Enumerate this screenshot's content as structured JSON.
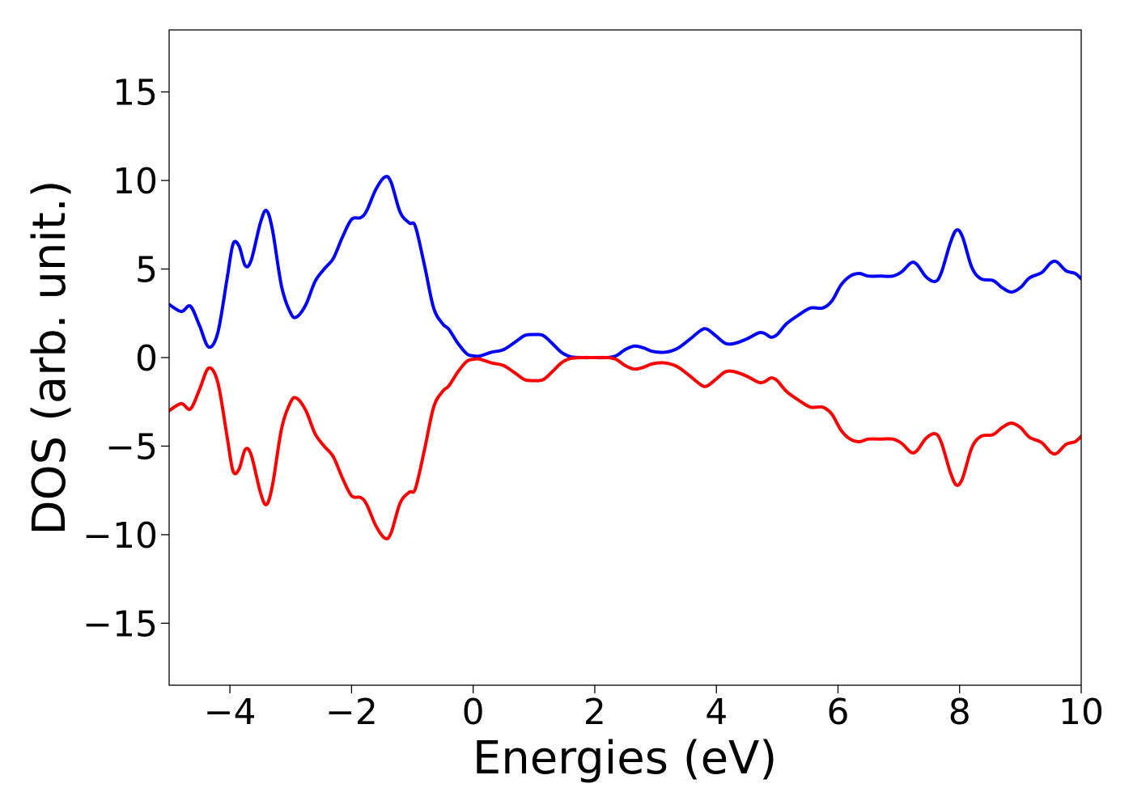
{
  "chart_data": {
    "type": "line",
    "title": "",
    "xlabel": "Energies (eV)",
    "ylabel": "DOS (arb. unit.)",
    "xlim": [
      -5,
      10
    ],
    "ylim": [
      -18.5,
      18.5
    ],
    "xticks": [
      -4,
      -2,
      0,
      2,
      4,
      6,
      8,
      10
    ],
    "xtick_labels": [
      "−4",
      "−2",
      "0",
      "2",
      "4",
      "6",
      "8",
      "10"
    ],
    "yticks": [
      -15,
      -10,
      -5,
      0,
      5,
      10,
      15
    ],
    "ytick_labels": [
      "−15",
      "−10",
      "−5",
      "0",
      "5",
      "10",
      "15"
    ],
    "grid": false,
    "legend": "none",
    "series": [
      {
        "color": "#0000ff",
        "points": [
          [
            -5.0,
            3.0
          ],
          [
            -4.8,
            2.6
          ],
          [
            -4.65,
            2.9
          ],
          [
            -4.5,
            1.8
          ],
          [
            -4.35,
            0.6
          ],
          [
            -4.2,
            1.4
          ],
          [
            -4.05,
            4.4
          ],
          [
            -3.95,
            6.4
          ],
          [
            -3.85,
            6.3
          ],
          [
            -3.75,
            5.2
          ],
          [
            -3.65,
            5.5
          ],
          [
            -3.5,
            7.6
          ],
          [
            -3.4,
            8.3
          ],
          [
            -3.3,
            7.2
          ],
          [
            -3.15,
            4.0
          ],
          [
            -3.0,
            2.5
          ],
          [
            -2.9,
            2.3
          ],
          [
            -2.75,
            3.0
          ],
          [
            -2.6,
            4.3
          ],
          [
            -2.45,
            5.0
          ],
          [
            -2.3,
            5.6
          ],
          [
            -2.15,
            6.8
          ],
          [
            -2.0,
            7.8
          ],
          [
            -1.85,
            7.9
          ],
          [
            -1.75,
            8.3
          ],
          [
            -1.6,
            9.5
          ],
          [
            -1.45,
            10.2
          ],
          [
            -1.35,
            9.9
          ],
          [
            -1.2,
            8.2
          ],
          [
            -1.05,
            7.6
          ],
          [
            -0.95,
            7.4
          ],
          [
            -0.8,
            5.2
          ],
          [
            -0.65,
            2.8
          ],
          [
            -0.5,
            1.9
          ],
          [
            -0.4,
            1.6
          ],
          [
            -0.25,
            0.8
          ],
          [
            -0.1,
            0.2
          ],
          [
            0.0,
            0.1
          ],
          [
            0.1,
            0.08
          ],
          [
            0.3,
            0.3
          ],
          [
            0.5,
            0.45
          ],
          [
            0.7,
            0.9
          ],
          [
            0.85,
            1.25
          ],
          [
            1.0,
            1.3
          ],
          [
            1.15,
            1.25
          ],
          [
            1.3,
            0.8
          ],
          [
            1.45,
            0.3
          ],
          [
            1.6,
            0.05
          ],
          [
            1.8,
            0.0
          ],
          [
            2.0,
            0.0
          ],
          [
            2.2,
            0.0
          ],
          [
            2.35,
            0.1
          ],
          [
            2.5,
            0.45
          ],
          [
            2.65,
            0.65
          ],
          [
            2.8,
            0.55
          ],
          [
            2.95,
            0.35
          ],
          [
            3.15,
            0.3
          ],
          [
            3.35,
            0.5
          ],
          [
            3.55,
            1.0
          ],
          [
            3.75,
            1.55
          ],
          [
            3.85,
            1.6
          ],
          [
            4.0,
            1.2
          ],
          [
            4.15,
            0.8
          ],
          [
            4.3,
            0.8
          ],
          [
            4.5,
            1.05
          ],
          [
            4.7,
            1.4
          ],
          [
            4.8,
            1.35
          ],
          [
            4.9,
            1.15
          ],
          [
            5.0,
            1.3
          ],
          [
            5.15,
            1.9
          ],
          [
            5.35,
            2.4
          ],
          [
            5.55,
            2.8
          ],
          [
            5.75,
            2.8
          ],
          [
            5.9,
            3.2
          ],
          [
            6.05,
            4.1
          ],
          [
            6.2,
            4.6
          ],
          [
            6.35,
            4.75
          ],
          [
            6.5,
            4.6
          ],
          [
            6.7,
            4.6
          ],
          [
            6.9,
            4.6
          ],
          [
            7.05,
            4.85
          ],
          [
            7.2,
            5.35
          ],
          [
            7.3,
            5.25
          ],
          [
            7.45,
            4.55
          ],
          [
            7.6,
            4.3
          ],
          [
            7.7,
            4.8
          ],
          [
            7.85,
            6.5
          ],
          [
            7.95,
            7.2
          ],
          [
            8.05,
            6.8
          ],
          [
            8.2,
            5.1
          ],
          [
            8.35,
            4.45
          ],
          [
            8.55,
            4.35
          ],
          [
            8.7,
            3.95
          ],
          [
            8.85,
            3.7
          ],
          [
            9.0,
            3.95
          ],
          [
            9.15,
            4.5
          ],
          [
            9.35,
            4.8
          ],
          [
            9.5,
            5.35
          ],
          [
            9.6,
            5.4
          ],
          [
            9.75,
            4.9
          ],
          [
            9.9,
            4.75
          ],
          [
            10.0,
            4.45
          ]
        ]
      },
      {
        "color": "#ff0000",
        "points": [
          [
            -5.0,
            -3.0
          ],
          [
            -4.8,
            -2.6
          ],
          [
            -4.65,
            -2.9
          ],
          [
            -4.5,
            -1.8
          ],
          [
            -4.35,
            -0.6
          ],
          [
            -4.2,
            -1.4
          ],
          [
            -4.05,
            -4.4
          ],
          [
            -3.95,
            -6.4
          ],
          [
            -3.85,
            -6.3
          ],
          [
            -3.75,
            -5.2
          ],
          [
            -3.65,
            -5.5
          ],
          [
            -3.5,
            -7.6
          ],
          [
            -3.4,
            -8.3
          ],
          [
            -3.3,
            -7.2
          ],
          [
            -3.15,
            -4.0
          ],
          [
            -3.0,
            -2.5
          ],
          [
            -2.9,
            -2.3
          ],
          [
            -2.75,
            -3.0
          ],
          [
            -2.6,
            -4.3
          ],
          [
            -2.45,
            -5.0
          ],
          [
            -2.3,
            -5.6
          ],
          [
            -2.15,
            -6.8
          ],
          [
            -2.0,
            -7.8
          ],
          [
            -1.85,
            -7.9
          ],
          [
            -1.75,
            -8.3
          ],
          [
            -1.6,
            -9.5
          ],
          [
            -1.45,
            -10.2
          ],
          [
            -1.35,
            -9.9
          ],
          [
            -1.2,
            -8.2
          ],
          [
            -1.05,
            -7.6
          ],
          [
            -0.95,
            -7.4
          ],
          [
            -0.8,
            -5.2
          ],
          [
            -0.65,
            -2.8
          ],
          [
            -0.5,
            -1.9
          ],
          [
            -0.4,
            -1.6
          ],
          [
            -0.25,
            -0.8
          ],
          [
            -0.1,
            -0.2
          ],
          [
            0.0,
            -0.1
          ],
          [
            0.1,
            -0.08
          ],
          [
            0.3,
            -0.3
          ],
          [
            0.5,
            -0.45
          ],
          [
            0.7,
            -0.9
          ],
          [
            0.85,
            -1.25
          ],
          [
            1.0,
            -1.3
          ],
          [
            1.15,
            -1.25
          ],
          [
            1.3,
            -0.8
          ],
          [
            1.45,
            -0.3
          ],
          [
            1.6,
            -0.05
          ],
          [
            1.8,
            0.0
          ],
          [
            2.0,
            0.0
          ],
          [
            2.2,
            0.0
          ],
          [
            2.35,
            -0.1
          ],
          [
            2.5,
            -0.45
          ],
          [
            2.65,
            -0.65
          ],
          [
            2.8,
            -0.55
          ],
          [
            2.95,
            -0.35
          ],
          [
            3.15,
            -0.3
          ],
          [
            3.35,
            -0.5
          ],
          [
            3.55,
            -1.0
          ],
          [
            3.75,
            -1.55
          ],
          [
            3.85,
            -1.6
          ],
          [
            4.0,
            -1.2
          ],
          [
            4.15,
            -0.8
          ],
          [
            4.3,
            -0.8
          ],
          [
            4.5,
            -1.05
          ],
          [
            4.7,
            -1.4
          ],
          [
            4.8,
            -1.35
          ],
          [
            4.9,
            -1.15
          ],
          [
            5.0,
            -1.3
          ],
          [
            5.15,
            -1.9
          ],
          [
            5.35,
            -2.4
          ],
          [
            5.55,
            -2.8
          ],
          [
            5.75,
            -2.8
          ],
          [
            5.9,
            -3.2
          ],
          [
            6.05,
            -4.1
          ],
          [
            6.2,
            -4.6
          ],
          [
            6.35,
            -4.75
          ],
          [
            6.5,
            -4.6
          ],
          [
            6.7,
            -4.6
          ],
          [
            6.9,
            -4.6
          ],
          [
            7.05,
            -4.85
          ],
          [
            7.2,
            -5.35
          ],
          [
            7.3,
            -5.25
          ],
          [
            7.45,
            -4.55
          ],
          [
            7.6,
            -4.3
          ],
          [
            7.7,
            -4.8
          ],
          [
            7.85,
            -6.5
          ],
          [
            7.95,
            -7.2
          ],
          [
            8.05,
            -6.8
          ],
          [
            8.2,
            -5.1
          ],
          [
            8.35,
            -4.45
          ],
          [
            8.55,
            -4.35
          ],
          [
            8.7,
            -3.95
          ],
          [
            8.85,
            -3.7
          ],
          [
            9.0,
            -3.95
          ],
          [
            9.15,
            -4.5
          ],
          [
            9.35,
            -4.8
          ],
          [
            9.5,
            -5.35
          ],
          [
            9.6,
            -5.4
          ],
          [
            9.75,
            -4.9
          ],
          [
            9.9,
            -4.75
          ],
          [
            10.0,
            -4.45
          ]
        ]
      }
    ]
  }
}
